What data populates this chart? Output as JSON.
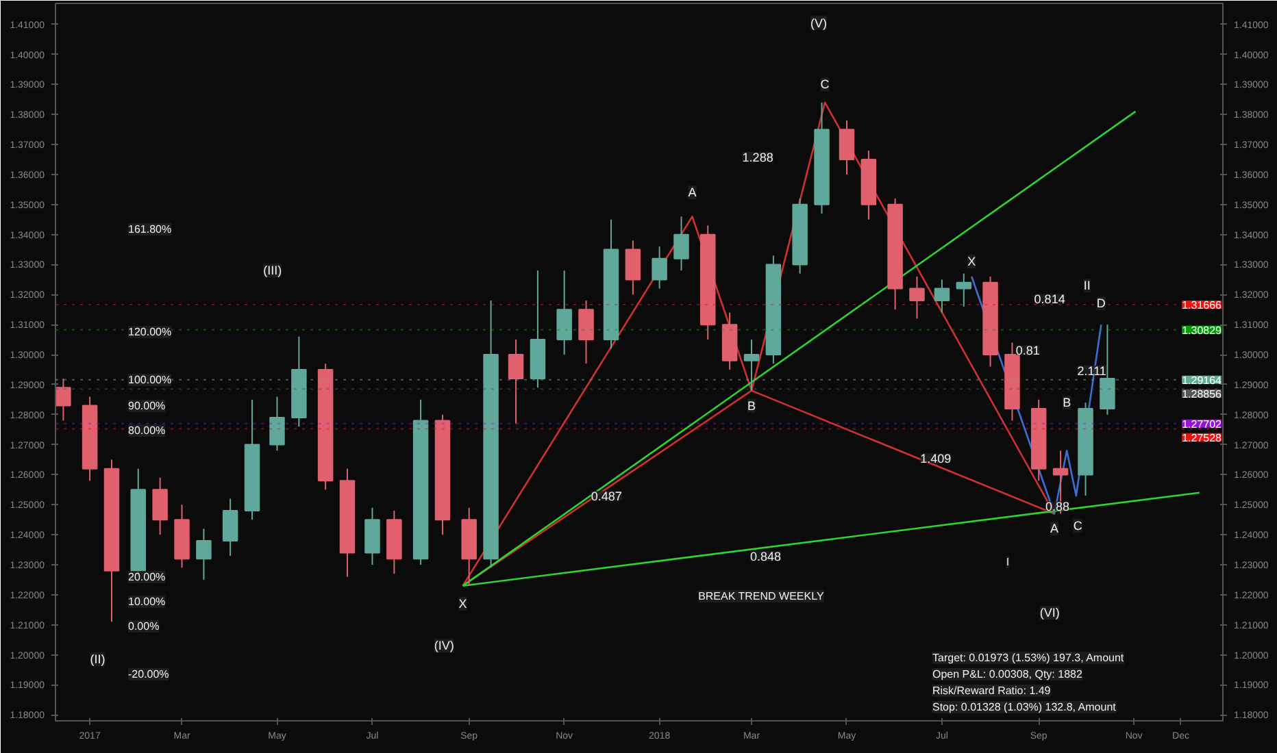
{
  "chart_data": {
    "type": "candlestick",
    "x": [
      "2016-12-15",
      "2017-01-01",
      "2017-01-15",
      "2017-02-01",
      "2017-02-15",
      "2017-03-01",
      "2017-03-15",
      "2017-04-01",
      "2017-04-15",
      "2017-05-01",
      "2017-05-15",
      "2017-06-01",
      "2017-06-15",
      "2017-07-01",
      "2017-07-15",
      "2017-08-01",
      "2017-08-15",
      "2017-09-01",
      "2017-09-15",
      "2017-10-01",
      "2017-10-15",
      "2017-11-01",
      "2017-11-15",
      "2017-12-01",
      "2017-12-15",
      "2018-01-01",
      "2018-01-15",
      "2018-02-01",
      "2018-02-15",
      "2018-03-01",
      "2018-03-15",
      "2018-04-01",
      "2018-04-15",
      "2018-05-01",
      "2018-05-15",
      "2018-06-01",
      "2018-06-15",
      "2018-07-01",
      "2018-07-15",
      "2018-08-01",
      "2018-08-15",
      "2018-09-01",
      "2018-09-15",
      "2018-10-01",
      "2018-10-15"
    ],
    "ohlc": [
      [
        1.289,
        1.292,
        1.278,
        1.283
      ],
      [
        1.283,
        1.286,
        1.258,
        1.262
      ],
      [
        1.262,
        1.265,
        1.211,
        1.228
      ],
      [
        1.228,
        1.262,
        1.226,
        1.255
      ],
      [
        1.255,
        1.259,
        1.24,
        1.245
      ],
      [
        1.245,
        1.25,
        1.229,
        1.232
      ],
      [
        1.232,
        1.242,
        1.225,
        1.238
      ],
      [
        1.238,
        1.252,
        1.233,
        1.248
      ],
      [
        1.248,
        1.285,
        1.245,
        1.27
      ],
      [
        1.27,
        1.286,
        1.268,
        1.279
      ],
      [
        1.279,
        1.306,
        1.276,
        1.295
      ],
      [
        1.295,
        1.297,
        1.255,
        1.258
      ],
      [
        1.258,
        1.262,
        1.226,
        1.234
      ],
      [
        1.234,
        1.249,
        1.23,
        1.245
      ],
      [
        1.245,
        1.248,
        1.227,
        1.232
      ],
      [
        1.232,
        1.285,
        1.23,
        1.278
      ],
      [
        1.278,
        1.28,
        1.24,
        1.245
      ],
      [
        1.245,
        1.249,
        1.223,
        1.232
      ],
      [
        1.232,
        1.318,
        1.229,
        1.3
      ],
      [
        1.3,
        1.305,
        1.277,
        1.292
      ],
      [
        1.292,
        1.328,
        1.289,
        1.305
      ],
      [
        1.305,
        1.328,
        1.3,
        1.315
      ],
      [
        1.315,
        1.318,
        1.297,
        1.305
      ],
      [
        1.305,
        1.345,
        1.302,
        1.335
      ],
      [
        1.335,
        1.338,
        1.32,
        1.325
      ],
      [
        1.325,
        1.336,
        1.322,
        1.332
      ],
      [
        1.332,
        1.346,
        1.328,
        1.34
      ],
      [
        1.34,
        1.343,
        1.305,
        1.31
      ],
      [
        1.31,
        1.314,
        1.295,
        1.298
      ],
      [
        1.298,
        1.305,
        1.288,
        1.3
      ],
      [
        1.3,
        1.333,
        1.297,
        1.33
      ],
      [
        1.33,
        1.352,
        1.327,
        1.35
      ],
      [
        1.35,
        1.384,
        1.347,
        1.375
      ],
      [
        1.375,
        1.378,
        1.36,
        1.365
      ],
      [
        1.365,
        1.368,
        1.345,
        1.35
      ],
      [
        1.35,
        1.352,
        1.315,
        1.322
      ],
      [
        1.322,
        1.326,
        1.312,
        1.318
      ],
      [
        1.318,
        1.325,
        1.314,
        1.322
      ],
      [
        1.322,
        1.327,
        1.316,
        1.324
      ],
      [
        1.324,
        1.326,
        1.296,
        1.3
      ],
      [
        1.3,
        1.304,
        1.278,
        1.282
      ],
      [
        1.282,
        1.285,
        1.258,
        1.262
      ],
      [
        1.262,
        1.268,
        1.247,
        1.26
      ],
      [
        1.26,
        1.284,
        1.253,
        1.282
      ],
      [
        1.282,
        1.31,
        1.28,
        1.292
      ]
    ],
    "colors": [
      "#e0606e",
      "#e0606e",
      "#e0606e",
      "#5fa89a",
      "#e0606e",
      "#e0606e",
      "#5fa89a",
      "#5fa89a",
      "#5fa89a",
      "#5fa89a",
      "#5fa89a",
      "#e0606e",
      "#e0606e",
      "#5fa89a",
      "#e0606e",
      "#5fa89a",
      "#e0606e",
      "#e0606e",
      "#5fa89a",
      "#e0606e",
      "#5fa89a",
      "#5fa89a",
      "#e0606e",
      "#5fa89a",
      "#e0606e",
      "#5fa89a",
      "#5fa89a",
      "#e0606e",
      "#e0606e",
      "#5fa89a",
      "#5fa89a",
      "#5fa89a",
      "#5fa89a",
      "#e0606e",
      "#e0606e",
      "#e0606e",
      "#e0606e",
      "#5fa89a",
      "#5fa89a",
      "#e0606e",
      "#e0606e",
      "#e0606e",
      "#e0606e",
      "#5fa89a",
      "#5fa89a"
    ],
    "series": [
      {
        "type": "line",
        "color": "#d03030",
        "x": [
          "2017-08-28",
          "2018-01-22",
          "2018-03-01",
          "2018-04-17",
          "2018-09-11"
        ],
        "values": [
          1.223,
          1.346,
          1.288,
          1.384,
          1.247
        ]
      },
      {
        "type": "line",
        "color": "#d03030",
        "x": [
          "2017-08-28",
          "2018-03-01",
          "2018-09-11"
        ],
        "values": [
          1.223,
          1.288,
          1.247
        ]
      },
      {
        "type": "line",
        "color": "#3a6fd8",
        "x": [
          "2018-07-20",
          "2018-09-11",
          "2018-09-19",
          "2018-09-25",
          "2018-10-11"
        ],
        "values": [
          1.326,
          1.247,
          1.268,
          1.253,
          1.31
        ]
      },
      {
        "type": "line",
        "color": "#2fd52f",
        "x": [
          "2017-08-28",
          "2018-12-13"
        ],
        "values": [
          1.223,
          1.254
        ]
      },
      {
        "type": "line",
        "color": "#2fd52f",
        "x": [
          "2017-08-28",
          "2018-11-02"
        ],
        "values": [
          1.223,
          1.381
        ]
      }
    ],
    "xlim": [
      "2016-12-10",
      "2018-12-28"
    ],
    "xticks": [
      {
        "value": "2017-01-01",
        "label": "2017"
      },
      {
        "value": "2017-03-01",
        "label": "Mar"
      },
      {
        "value": "2017-05-01",
        "label": "May"
      },
      {
        "value": "2017-07-01",
        "label": "Jul"
      },
      {
        "value": "2017-09-01",
        "label": "Sep"
      },
      {
        "value": "2017-11-01",
        "label": "Nov"
      },
      {
        "value": "2018-01-01",
        "label": "2018"
      },
      {
        "value": "2018-03-01",
        "label": "Mar"
      },
      {
        "value": "2018-05-01",
        "label": "May"
      },
      {
        "value": "2018-07-01",
        "label": "Jul"
      },
      {
        "value": "2018-09-01",
        "label": "Sep"
      },
      {
        "value": "2018-11-01",
        "label": "Nov"
      },
      {
        "value": "2018-12-01",
        "label": "Dec"
      }
    ],
    "ylim": [
      1.178,
      1.417
    ],
    "yticks": [
      {
        "value": 1.18,
        "label": "1.18000"
      },
      {
        "value": 1.19,
        "label": "1.19000"
      },
      {
        "value": 1.2,
        "label": "1.20000"
      },
      {
        "value": 1.21,
        "label": "1.21000"
      },
      {
        "value": 1.22,
        "label": "1.22000"
      },
      {
        "value": 1.23,
        "label": "1.23000"
      },
      {
        "value": 1.24,
        "label": "1.24000"
      },
      {
        "value": 1.25,
        "label": "1.25000"
      },
      {
        "value": 1.26,
        "label": "1.26000"
      },
      {
        "value": 1.27,
        "label": "1.27000"
      },
      {
        "value": 1.28,
        "label": "1.28000"
      },
      {
        "value": 1.29,
        "label": "1.29000"
      },
      {
        "value": 1.3,
        "label": "1.30000"
      },
      {
        "value": 1.31,
        "label": "1.31000"
      },
      {
        "value": 1.32,
        "label": "1.32000"
      },
      {
        "value": 1.33,
        "label": "1.33000"
      },
      {
        "value": 1.34,
        "label": "1.34000"
      },
      {
        "value": 1.35,
        "label": "1.35000"
      },
      {
        "value": 1.36,
        "label": "1.36000"
      },
      {
        "value": 1.37,
        "label": "1.37000"
      },
      {
        "value": 1.38,
        "label": "1.38000"
      },
      {
        "value": 1.39,
        "label": "1.39000"
      },
      {
        "value": 1.4,
        "label": "1.40000"
      },
      {
        "value": 1.41,
        "label": "1.41000"
      }
    ],
    "y2lim": [
      1.178,
      1.417
    ],
    "y2ticks": [
      {
        "value": 1.18,
        "label": "1.18000"
      },
      {
        "value": 1.19,
        "label": "1.19000"
      },
      {
        "value": 1.2,
        "label": "1.20000"
      },
      {
        "value": 1.21,
        "label": "1.21000"
      },
      {
        "value": 1.22,
        "label": "1.22000"
      },
      {
        "value": 1.23,
        "label": "1.23000"
      },
      {
        "value": 1.24,
        "label": "1.24000"
      },
      {
        "value": 1.25,
        "label": "1.25000"
      },
      {
        "value": 1.26,
        "label": "1.26000"
      },
      {
        "value": 1.27,
        "label": "1.27000"
      },
      {
        "value": 1.28,
        "label": "1.28000"
      },
      {
        "value": 1.29,
        "label": "1.29000"
      },
      {
        "value": 1.3,
        "label": "1.30000"
      },
      {
        "value": 1.31,
        "label": "1.31000"
      },
      {
        "value": 1.32,
        "label": "1.32000"
      },
      {
        "value": 1.33,
        "label": "1.33000"
      },
      {
        "value": 1.34,
        "label": "1.34000"
      },
      {
        "value": 1.35,
        "label": "1.35000"
      },
      {
        "value": 1.36,
        "label": "1.36000"
      },
      {
        "value": 1.37,
        "label": "1.37000"
      },
      {
        "value": 1.38,
        "label": "1.38000"
      },
      {
        "value": 1.39,
        "label": "1.39000"
      },
      {
        "value": 1.4,
        "label": "1.40000"
      },
      {
        "value": 1.41,
        "label": "1.41000"
      }
    ],
    "ref_lines": [
      {
        "axis": "y",
        "value": 1.31666,
        "label": "1.31666",
        "color": "#f01010"
      },
      {
        "axis": "y",
        "value": 1.30829,
        "label": "1.30829",
        "color": "#0a9a0a"
      },
      {
        "axis": "y",
        "value": 1.29164,
        "label": "1.29164",
        "color": "#5fae96",
        "line_style": "dotted"
      },
      {
        "axis": "y",
        "value": 1.28856,
        "label": "1.28856",
        "color": "#555555"
      },
      {
        "axis": "y",
        "value": 1.27702,
        "label": "1.27702",
        "color": "#9a10e0"
      },
      {
        "axis": "y",
        "value": 1.27528,
        "label": "1.27528",
        "color": "#f01010"
      }
    ],
    "annotations": [
      "161.80%",
      "120.00%",
      "100.00%",
      "90.00%",
      "80.00%",
      "20.00%",
      "10.00%",
      "0.00%",
      "-20.00%",
      {
        "text": "(II)",
        "x": "2017-01-06",
        "y": 1.1985
      },
      {
        "text": "(III)",
        "x": "2017-04-28",
        "y": 1.328
      },
      {
        "text": "(IV)",
        "x": "2017-08-16",
        "y": 1.203
      },
      {
        "text": "(V)",
        "x": "2018-04-13",
        "y": 1.4105
      },
      {
        "text": "(VI)",
        "x": "2018-09-08",
        "y": 1.214
      },
      "I",
      {
        "text": "II",
        "x": "2018-10-02",
        "y": 1.323
      },
      {
        "text": "X",
        "x": "2017-08-28",
        "y": 1.217
      },
      {
        "text": "A",
        "x": "2018-01-22",
        "y": 1.354
      },
      {
        "text": "B",
        "x": "2018-03-01",
        "y": 1.283
      },
      {
        "text": "C",
        "x": "2018-04-17",
        "y": 1.39
      },
      {
        "text": "1.288",
        "x": "2018-03-05",
        "y": 1.366
      },
      {
        "text": "0.487",
        "x": "2017-11-28",
        "y": 1.253
      },
      {
        "text": "1.409",
        "x": "2018-06-27",
        "y": 1.2655
      },
      {
        "text": "0.848",
        "x": "2018-03-10",
        "y": 1.233
      },
      {
        "text": "X",
        "x": "2018-07-20",
        "y": 1.331
      },
      {
        "text": "A",
        "x": "2018-09-11",
        "y": 1.242
      },
      {
        "text": "B",
        "x": "2018-09-19",
        "y": 1.284
      },
      {
        "text": "C",
        "x": "2018-09-26",
        "y": 1.243
      },
      {
        "text": "D",
        "x": "2018-10-11",
        "y": 1.317
      },
      {
        "text": "0.814",
        "x": "2018-09-08",
        "y": 1.3186
      },
      {
        "text": "0.81",
        "x": "2018-08-25",
        "y": 1.3015
      },
      {
        "text": "2.111",
        "x": "2018-10-05",
        "y": 1.2948
      },
      {
        "text": "0.88",
        "x": "2018-09-13",
        "y": 1.2495
      },
      "BREAK TREND WEEKLY",
      "Target: 0.01973 (1.53%) 197.3, Amount",
      "Open P&L: 0.00308, Qty: 1882",
      "Risk/Reward Ratio: 1.49",
      "Stop: 0.01328 (1.03%) 132.8, Amount"
    ]
  }
}
